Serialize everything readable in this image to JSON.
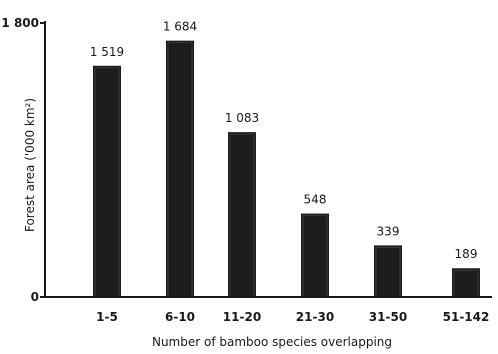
{
  "chart_data": {
    "type": "bar",
    "title": "",
    "xlabel": "Number of bamboo species overlapping",
    "ylabel": "Forest area ('000 km²)",
    "categories": [
      "1-5",
      "6-10",
      "11-20",
      "21-30",
      "31-50",
      "51-142"
    ],
    "values": [
      1519,
      1684,
      1083,
      548,
      339,
      189
    ],
    "value_labels": [
      "1 519",
      "1 684",
      "1 083",
      "548",
      "339",
      "189"
    ],
    "ylim": [
      0,
      1800
    ],
    "yticks": [
      {
        "value": 0,
        "label": "0"
      },
      {
        "value": 1800,
        "label": "1 800"
      }
    ],
    "grid": false,
    "bar_color": "#1c1c1c",
    "axis_color": "#1a1a1a"
  }
}
